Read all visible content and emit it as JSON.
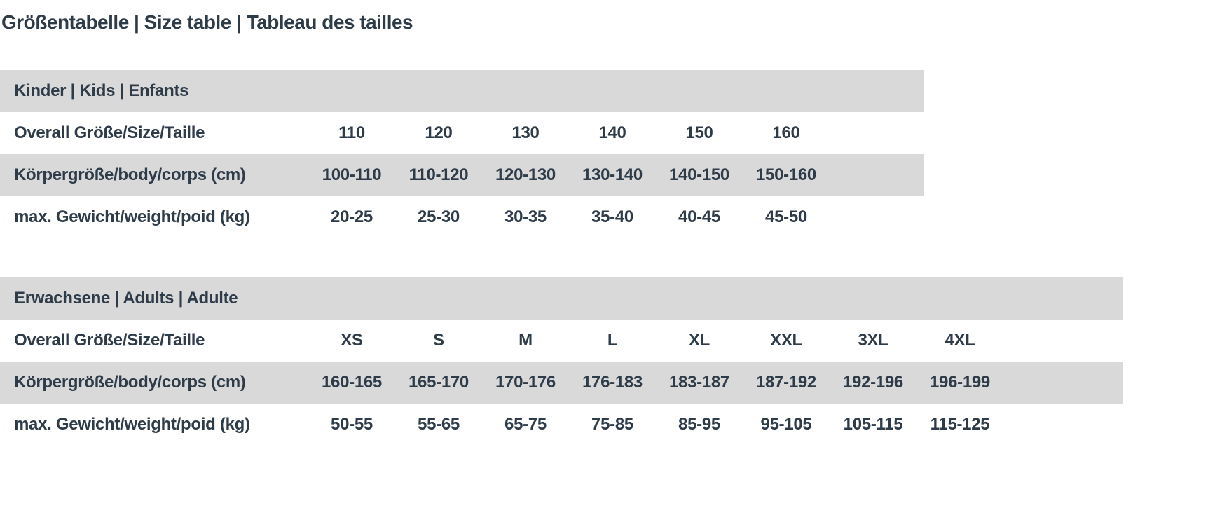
{
  "page": {
    "title": "Größentabelle | Size table | Tableau des tailles"
  },
  "colors": {
    "band_gray": "#d9d9d9",
    "text_dark": "#2e3b49",
    "background": "#ffffff"
  },
  "tables": [
    {
      "id": "kids",
      "section_header": "Kinder | Kids | Enfants",
      "rows": [
        {
          "label": "Overall Größe/Size/Taille",
          "values": [
            "110",
            "120",
            "130",
            "140",
            "150",
            "160"
          ]
        },
        {
          "label": "Körpergröße/body/corps (cm)",
          "values": [
            "100-110",
            "110-120",
            "120-130",
            "130-140",
            "140-150",
            "150-160"
          ]
        },
        {
          "label": "max. Gewicht/weight/poid (kg)",
          "values": [
            "20-25",
            "25-30",
            "30-35",
            "35-40",
            "40-45",
            "45-50"
          ]
        }
      ]
    },
    {
      "id": "adults",
      "section_header": "Erwachsene | Adults | Adulte",
      "rows": [
        {
          "label": "Overall Größe/Size/Taille",
          "values": [
            "XS",
            "S",
            "M",
            "L",
            "XL",
            "XXL",
            "3XL",
            "4XL"
          ]
        },
        {
          "label": "Körpergröße/body/corps (cm)",
          "values": [
            "160-165",
            "165-170",
            "170-176",
            "176-183",
            "183-187",
            "187-192",
            "192-196",
            "196-199"
          ]
        },
        {
          "label": "max. Gewicht/weight/poid (kg)",
          "values": [
            "50-55",
            "55-65",
            "65-75",
            "75-85",
            "85-95",
            "95-105",
            "105-115",
            "115-125"
          ]
        }
      ]
    }
  ]
}
